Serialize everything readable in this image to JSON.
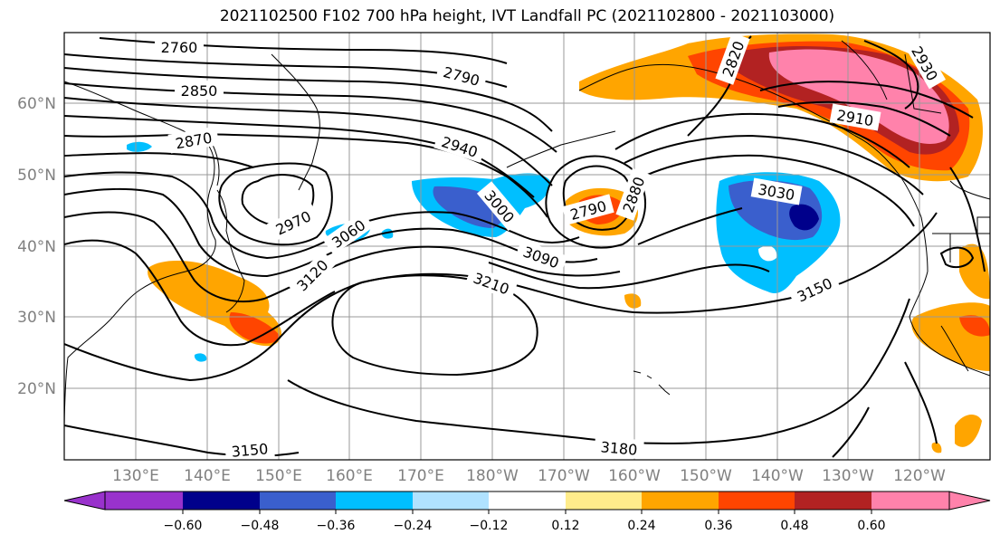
{
  "title": "2021102500 F102 700 hPa height, IVT Landfall PC (2021102800 - 2021103000)",
  "lat_labels": [
    "60°N",
    "50°N",
    "40°N",
    "30°N",
    "20°N"
  ],
  "lon_labels": [
    "130°E",
    "140°E",
    "150°E",
    "160°E",
    "170°E",
    "180°W",
    "170°W",
    "160°W",
    "150°W",
    "140°W",
    "130°W",
    "120°W"
  ],
  "contour_labels": [
    "2760",
    "2790",
    "2820",
    "2850",
    "2870",
    "2880",
    "2910",
    "2930",
    "2940",
    "2970",
    "2790",
    "3000",
    "3030",
    "3060",
    "3090",
    "3120",
    "3150",
    "3210",
    "3150",
    "3180"
  ],
  "colorbar": {
    "tick_labels": [
      "−0.60",
      "−0.48",
      "−0.36",
      "−0.24",
      "−0.12",
      "0.12",
      "0.24",
      "0.36",
      "0.48",
      "0.60"
    ],
    "colors": [
      "#9932CC",
      "#00008B",
      "#3A5FCD",
      "#00BFFF",
      "#B0E2FF",
      "#FFFFFF",
      "#FFEC8B",
      "#FFA500",
      "#FF4500",
      "#B22222",
      "#FF82AB",
      "#FF82AB"
    ]
  },
  "colors": {
    "coast": "#000000",
    "grid": "#999999",
    "contour": "#000000"
  }
}
